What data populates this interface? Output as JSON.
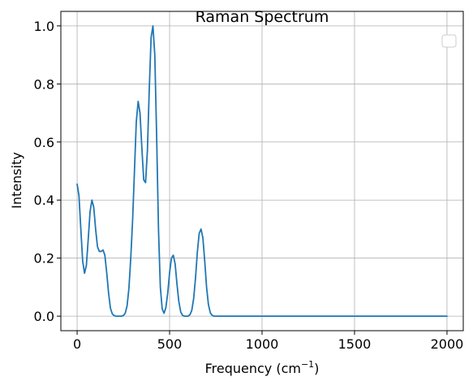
{
  "chart_data": {
    "type": "line",
    "title": "Raman Spectrum",
    "xlabel": "Frequency (cm",
    "xlabel_superscript": "−1",
    "xlabel_suffix": ")",
    "ylabel": "Intensity",
    "xlim": [
      -88,
      2088
    ],
    "ylim": [
      -0.05,
      1.05
    ],
    "xticks": [
      0,
      500,
      1000,
      1500,
      2000
    ],
    "xtick_labels": [
      "0",
      "500",
      "1000",
      "1500",
      "2000"
    ],
    "yticks": [
      0.0,
      0.2,
      0.4,
      0.6,
      0.8,
      1.0
    ],
    "ytick_labels": [
      "0.0",
      "0.2",
      "0.4",
      "0.6",
      "0.8",
      "1.0"
    ],
    "grid": true,
    "legend": {
      "location": "upper right",
      "entries": []
    },
    "series": [
      {
        "color": "#1f77b4",
        "x": [
          0,
          10,
          20,
          30,
          40,
          50,
          60,
          70,
          80,
          90,
          100,
          110,
          120,
          130,
          140,
          150,
          160,
          170,
          180,
          190,
          200,
          210,
          220,
          230,
          240,
          250,
          260,
          270,
          280,
          290,
          300,
          310,
          320,
          330,
          340,
          350,
          360,
          370,
          380,
          390,
          400,
          410,
          420,
          430,
          440,
          450,
          460,
          470,
          480,
          490,
          500,
          510,
          520,
          530,
          540,
          550,
          560,
          570,
          580,
          590,
          600,
          610,
          620,
          630,
          640,
          650,
          660,
          670,
          680,
          690,
          700,
          710,
          720,
          730,
          740,
          750,
          760,
          770,
          780,
          790,
          800,
          810,
          820,
          830,
          840,
          850,
          860,
          870,
          880,
          890,
          900,
          950,
          1000,
          1500,
          2000
        ],
        "y": [
          0.455,
          0.415,
          0.3,
          0.19,
          0.148,
          0.175,
          0.265,
          0.36,
          0.4,
          0.375,
          0.3,
          0.24,
          0.223,
          0.223,
          0.228,
          0.21,
          0.15,
          0.08,
          0.028,
          0.008,
          0.002,
          0.0,
          0.0,
          0.0,
          0.0,
          0.002,
          0.01,
          0.035,
          0.095,
          0.2,
          0.33,
          0.5,
          0.67,
          0.74,
          0.7,
          0.58,
          0.47,
          0.46,
          0.57,
          0.78,
          0.96,
          1.0,
          0.9,
          0.62,
          0.3,
          0.1,
          0.025,
          0.01,
          0.03,
          0.08,
          0.15,
          0.2,
          0.21,
          0.18,
          0.11,
          0.05,
          0.015,
          0.003,
          0.0,
          0.0,
          0.0,
          0.005,
          0.02,
          0.06,
          0.13,
          0.22,
          0.285,
          0.3,
          0.27,
          0.19,
          0.1,
          0.04,
          0.012,
          0.003,
          0.0,
          0.0,
          0.0,
          0.0,
          0.0,
          0.0,
          0.0,
          0.0,
          0.0,
          0.0,
          0.0,
          0.0,
          0.0,
          0.0,
          0.0,
          0.0,
          0.0,
          0.0,
          0.0,
          0.0,
          0.0
        ]
      }
    ]
  }
}
